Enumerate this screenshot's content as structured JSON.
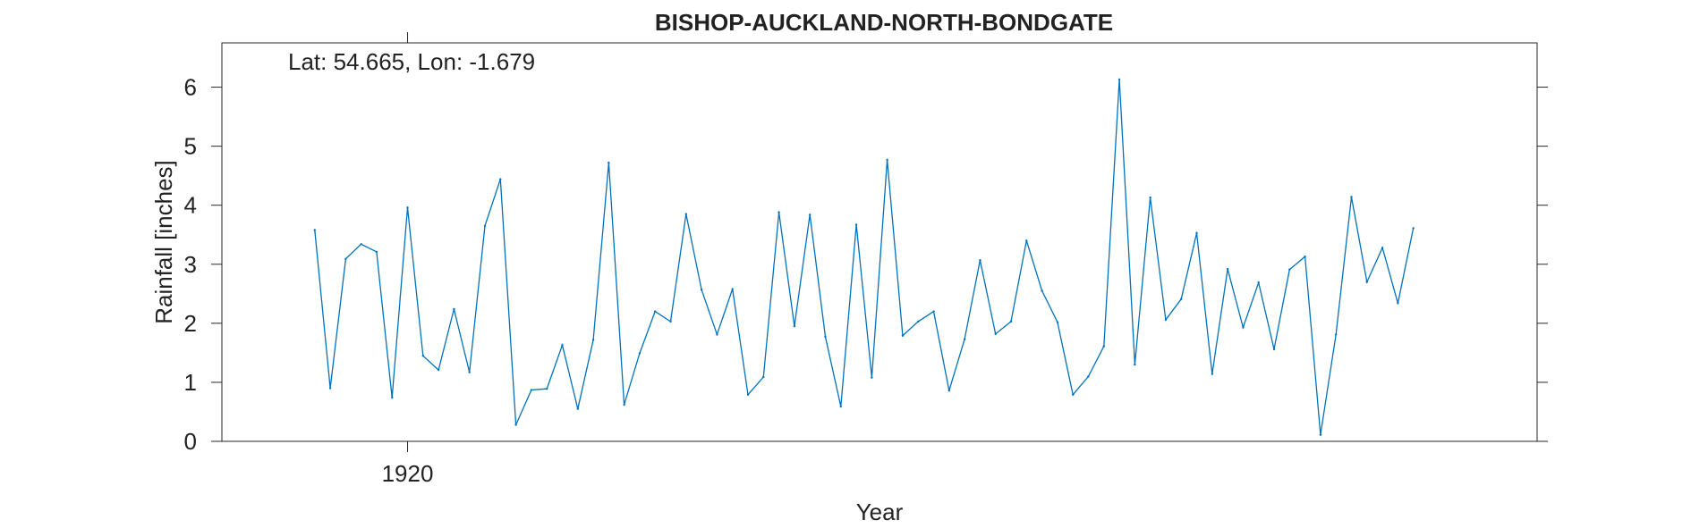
{
  "chart_data": {
    "type": "line",
    "title": "BISHOP-AUCKLAND-NORTH-BONDGATE",
    "annotation": "Lat: 54.665, Lon: -1.679",
    "xlabel": "Year",
    "ylabel": "Rainfall [inches]",
    "xlim": [
      1908,
      1993
    ],
    "ylim": [
      0,
      6.75
    ],
    "xticks": [
      1920
    ],
    "yticks": [
      0,
      1,
      2,
      3,
      4,
      5,
      6
    ],
    "grid": false,
    "line_color": "#0072BD",
    "x": [
      1914,
      1915,
      1916,
      1917,
      1918,
      1919,
      1920,
      1921,
      1922,
      1923,
      1924,
      1925,
      1926,
      1927,
      1928,
      1929,
      1930,
      1931,
      1932,
      1933,
      1934,
      1935,
      1936,
      1937,
      1938,
      1939,
      1940,
      1941,
      1942,
      1943,
      1944,
      1945,
      1946,
      1947,
      1948,
      1949,
      1950,
      1951,
      1952,
      1953,
      1954,
      1955,
      1956,
      1957,
      1958,
      1959,
      1960,
      1961,
      1962,
      1963,
      1964,
      1965,
      1966,
      1967,
      1968,
      1969,
      1970,
      1971,
      1972,
      1973,
      1974,
      1975,
      1976,
      1977,
      1978,
      1979,
      1980,
      1981,
      1982,
      1983,
      1984,
      1985
    ],
    "y": [
      3.58,
      0.9,
      3.09,
      3.34,
      3.21,
      0.74,
      3.96,
      1.45,
      1.21,
      2.24,
      1.17,
      3.65,
      4.44,
      0.28,
      0.87,
      0.89,
      1.63,
      0.55,
      1.72,
      4.72,
      0.62,
      1.49,
      2.2,
      2.03,
      3.85,
      2.57,
      1.81,
      2.58,
      0.79,
      1.09,
      3.88,
      1.95,
      3.84,
      1.77,
      0.59,
      3.67,
      1.08,
      4.77,
      1.79,
      2.03,
      2.2,
      0.86,
      1.73,
      3.07,
      1.82,
      2.03,
      3.4,
      2.55,
      2.02,
      0.79,
      1.1,
      1.61,
      6.13,
      1.3,
      4.13,
      2.06,
      2.41,
      3.53,
      1.14,
      2.92,
      1.93,
      2.69,
      1.56,
      2.91,
      3.13,
      0.11,
      1.81,
      4.14,
      2.7,
      3.28,
      2.34,
      3.61
    ]
  }
}
